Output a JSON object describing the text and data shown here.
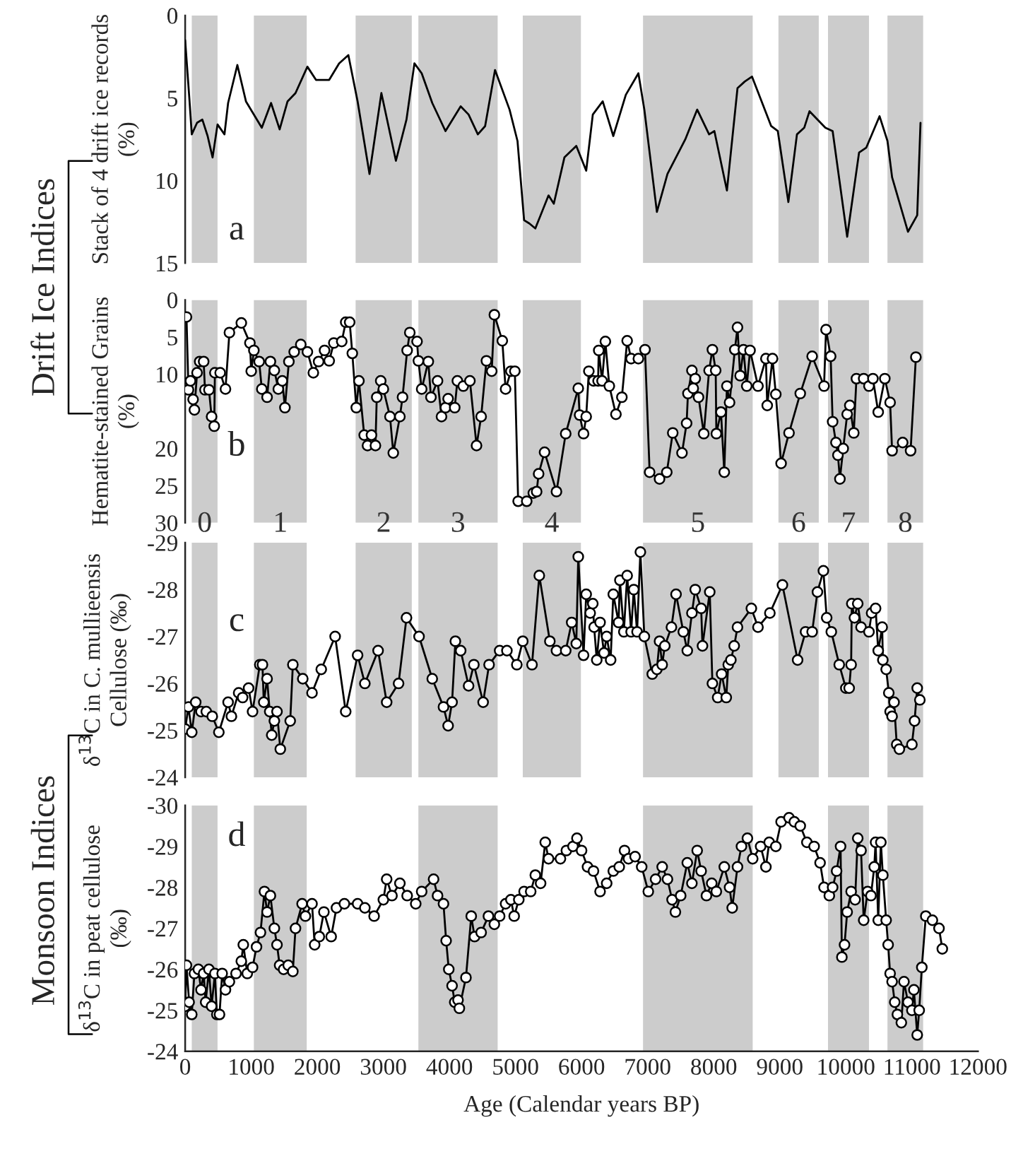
{
  "chart_data": [
    {
      "type": "line",
      "ylabel": "Stack of 4 drift ice records\n(%)",
      "annotations": [
        "a",
        "Drift Ice Indices"
      ],
      "xlim": [
        0,
        12000
      ],
      "ylim": [
        15,
        0
      ],
      "yticks": [
        0,
        5,
        10,
        15
      ],
      "tick_labels": "y",
      "marker": "none",
      "line_style": "solid",
      "grid": false,
      "legend": false,
      "bands": [
        {
          "axis": "x",
          "from": 100,
          "to": 490,
          "color": "#cccccc"
        },
        {
          "axis": "x",
          "from": 1040,
          "to": 1840,
          "color": "#cccccc"
        },
        {
          "axis": "x",
          "from": 2580,
          "to": 3430,
          "color": "#cccccc"
        },
        {
          "axis": "x",
          "from": 3530,
          "to": 4730,
          "color": "#cccccc"
        },
        {
          "axis": "x",
          "from": 5110,
          "to": 5990,
          "color": "#cccccc"
        },
        {
          "axis": "x",
          "from": 6930,
          "to": 8590,
          "color": "#cccccc"
        },
        {
          "axis": "x",
          "from": 8980,
          "to": 9590,
          "color": "#cccccc"
        },
        {
          "axis": "x",
          "from": 9730,
          "to": 10350,
          "color": "#cccccc"
        },
        {
          "axis": "x",
          "from": 10630,
          "to": 11170,
          "color": "#cccccc"
        }
      ],
      "series": [
        {
          "color": "#000000",
          "x": [
            0,
            63,
            100,
            180,
            260,
            340,
            415,
            490,
            595,
            650,
            790,
            920,
            1160,
            1300,
            1430,
            1550,
            1670,
            1850,
            1980,
            2180,
            2330,
            2470,
            2610,
            2790,
            2970,
            3190,
            3350,
            3470,
            3580,
            3740,
            3940,
            4170,
            4290,
            4430,
            4540,
            4690,
            4910,
            5030,
            5130,
            5210,
            5300,
            5500,
            5580,
            5740,
            5920,
            6070,
            6170,
            6320,
            6480,
            6670,
            6860,
            6950,
            7140,
            7300,
            7570,
            7750,
            7930,
            8010,
            8200,
            8360,
            8470,
            8580,
            8870,
            8970,
            9130,
            9260,
            9370,
            9450,
            9690,
            9800,
            10020,
            10200,
            10310,
            10510,
            10630,
            10700,
            10940,
            11080,
            11130
          ],
          "values": [
            1.5,
            5.0,
            7.2,
            6.5,
            6.3,
            7.3,
            8.6,
            6.6,
            7.2,
            5.3,
            3.0,
            5.2,
            6.8,
            5.3,
            6.9,
            5.2,
            4.7,
            3.1,
            3.9,
            3.9,
            2.9,
            2.4,
            5.2,
            9.6,
            4.7,
            8.8,
            6.3,
            2.9,
            3.5,
            5.3,
            7.0,
            5.5,
            6.0,
            7.2,
            6.7,
            3.3,
            5.7,
            7.6,
            12.4,
            12.6,
            12.9,
            10.9,
            11.4,
            8.6,
            7.9,
            9.4,
            6.0,
            5.2,
            7.3,
            4.8,
            3.5,
            5.7,
            11.9,
            9.6,
            7.5,
            5.7,
            7.2,
            7.0,
            10.6,
            4.4,
            4.0,
            3.7,
            6.7,
            7.0,
            11.3,
            7.2,
            6.8,
            5.8,
            6.8,
            7.0,
            13.4,
            8.3,
            8.0,
            6.1,
            7.6,
            9.8,
            13.1,
            12.1,
            6.5
          ]
        }
      ]
    },
    {
      "type": "line",
      "ylabel": "Hematite-stained Grains\n(%)",
      "annotations": [
        "b"
      ],
      "xlim": [
        0,
        12000
      ],
      "ylim": [
        30,
        0
      ],
      "yticks": [
        0,
        5,
        10,
        20,
        25,
        30
      ],
      "tick_labels": "y",
      "marker": "circle",
      "line_style": "solid",
      "grid": false,
      "legend": false,
      "bands": [
        {
          "axis": "x",
          "from": 100,
          "to": 490,
          "color": "#cccccc"
        },
        {
          "axis": "x",
          "from": 1040,
          "to": 1840,
          "color": "#cccccc"
        },
        {
          "axis": "x",
          "from": 2580,
          "to": 3430,
          "color": "#cccccc"
        },
        {
          "axis": "x",
          "from": 3530,
          "to": 4730,
          "color": "#cccccc"
        },
        {
          "axis": "x",
          "from": 5110,
          "to": 5990,
          "color": "#cccccc"
        },
        {
          "axis": "x",
          "from": 6930,
          "to": 8590,
          "color": "#cccccc"
        },
        {
          "axis": "x",
          "from": 8980,
          "to": 9590,
          "color": "#cccccc"
        },
        {
          "axis": "x",
          "from": 9730,
          "to": 10350,
          "color": "#cccccc"
        },
        {
          "axis": "x",
          "from": 10630,
          "to": 11170,
          "color": "#cccccc"
        }
      ],
      "series": [
        {
          "color": "#000000",
          "x": [
            20,
            50,
            80,
            120,
            140,
            180,
            220,
            280,
            300,
            360,
            400,
            440,
            450,
            530,
            610,
            670,
            850,
            980,
            1000,
            1040,
            1120,
            1160,
            1240,
            1290,
            1350,
            1410,
            1470,
            1510,
            1570,
            1650,
            1750,
            1850,
            1940,
            2020,
            2110,
            2180,
            2250,
            2370,
            2430,
            2490,
            2530,
            2590,
            2630,
            2710,
            2760,
            2820,
            2880,
            2900,
            2960,
            3000,
            3100,
            3150,
            3250,
            3290,
            3360,
            3400,
            3510,
            3530,
            3580,
            3680,
            3720,
            3820,
            3880,
            3940,
            3980,
            4080,
            4120,
            4210,
            4310,
            4410,
            4480,
            4560,
            4640,
            4680,
            4800,
            4850,
            4930,
            4990,
            5040,
            5170,
            5270,
            5320,
            5350,
            5440,
            5620,
            5760,
            5950,
            5970,
            6030,
            6070,
            6110,
            6180,
            6250,
            6260,
            6310,
            6360,
            6420,
            6520,
            6610,
            6690,
            6750,
            6860,
            6960,
            7030,
            7180,
            7290,
            7380,
            7520,
            7590,
            7610,
            7670,
            7690,
            7720,
            7770,
            7850,
            7930,
            7980,
            8030,
            8040,
            8110,
            8160,
            8200,
            8240,
            8320,
            8360,
            8400,
            8450,
            8500,
            8550,
            8670,
            8790,
            8810,
            8890,
            8940,
            9020,
            9140,
            9310,
            9490,
            9670,
            9700,
            9770,
            9800,
            9850,
            9880,
            9910,
            9960,
            10020,
            10060,
            10120,
            10160,
            10270,
            10350,
            10410,
            10490,
            10590,
            10670,
            10700,
            10860,
            10980,
            11060
          ],
          "values": [
            2.3,
            12.1,
            10.9,
            13.4,
            14.8,
            9.8,
            8.3,
            8.3,
            12.1,
            12.1,
            15.7,
            17.0,
            9.8,
            9.8,
            12.0,
            4.4,
            3.1,
            5.8,
            9.6,
            6.8,
            8.3,
            12.0,
            13.1,
            8.3,
            9.5,
            12.0,
            10.9,
            14.5,
            8.3,
            7.0,
            6.0,
            7.0,
            9.8,
            8.3,
            6.8,
            8.2,
            5.8,
            5.6,
            3.0,
            3.0,
            7.2,
            14.5,
            10.9,
            18.2,
            19.6,
            18.2,
            19.6,
            13.1,
            10.9,
            12.0,
            15.7,
            20.6,
            15.7,
            13.1,
            6.8,
            4.4,
            5.6,
            8.2,
            12.0,
            8.3,
            13.1,
            10.9,
            15.7,
            14.5,
            13.3,
            14.5,
            10.9,
            11.6,
            10.9,
            19.6,
            15.7,
            8.2,
            9.6,
            2.0,
            5.5,
            12.0,
            9.6,
            9.6,
            27.1,
            27.1,
            26.0,
            25.8,
            23.4,
            20.5,
            25.8,
            18.0,
            11.9,
            15.5,
            18.0,
            15.7,
            9.6,
            10.9,
            10.9,
            6.8,
            10.9,
            5.6,
            11.6,
            15.4,
            13.1,
            5.5,
            7.9,
            7.9,
            6.7,
            23.2,
            24.1,
            23.2,
            17.9,
            20.6,
            16.6,
            12.6,
            9.5,
            11.9,
            10.6,
            13.1,
            18.0,
            9.5,
            6.7,
            9.5,
            18.0,
            15.1,
            23.2,
            11.6,
            13.8,
            6.7,
            3.7,
            10.2,
            6.7,
            11.6,
            6.8,
            11.6,
            7.9,
            14.2,
            7.9,
            12.7,
            22.0,
            17.9,
            12.6,
            7.6,
            11.6,
            4.0,
            7.6,
            16.4,
            19.2,
            20.9,
            24.1,
            20.0,
            15.4,
            14.2,
            17.9,
            10.6,
            10.6,
            11.6,
            10.6,
            15.1,
            10.6,
            13.8,
            20.3,
            19.2,
            20.3,
            7.7
          ]
        }
      ]
    },
    {
      "type": "line",
      "ylabel": "δ$^{13}$C in C. mullieensis\nCellulose (‰)",
      "annotations": [
        "c",
        "Monsoon Indices"
      ],
      "xlim": [
        0,
        12000
      ],
      "ylim": [
        -24,
        -29
      ],
      "yticks": [
        -29,
        -28,
        -27,
        -26,
        -25,
        -24
      ],
      "tick_labels": "y",
      "marker": "circle",
      "line_style": "solid",
      "grid": false,
      "legend": false,
      "bands": [
        {
          "axis": "x",
          "from": 100,
          "to": 490,
          "color": "#cccccc",
          "label": "0"
        },
        {
          "axis": "x",
          "from": 1040,
          "to": 1840,
          "color": "#cccccc",
          "label": "1"
        },
        {
          "axis": "x",
          "from": 2580,
          "to": 3430,
          "color": "#cccccc",
          "label": "2"
        },
        {
          "axis": "x",
          "from": 3530,
          "to": 4730,
          "color": "#cccccc",
          "label": "3"
        },
        {
          "axis": "x",
          "from": 5110,
          "to": 5990,
          "color": "#cccccc",
          "label": "4"
        },
        {
          "axis": "x",
          "from": 6930,
          "to": 8590,
          "color": "#cccccc",
          "label": "5"
        },
        {
          "axis": "x",
          "from": 8980,
          "to": 9590,
          "color": "#cccccc",
          "label": "6"
        },
        {
          "axis": "x",
          "from": 9730,
          "to": 10350,
          "color": "#cccccc",
          "label": "7"
        },
        {
          "axis": "x",
          "from": 10630,
          "to": 11170,
          "color": "#cccccc",
          "label": "8"
        }
      ],
      "series": [
        {
          "color": "#000000",
          "x": [
            0,
            50,
            100,
            160,
            240,
            320,
            410,
            510,
            650,
            700,
            810,
            870,
            960,
            1020,
            1130,
            1170,
            1190,
            1240,
            1280,
            1310,
            1350,
            1390,
            1440,
            1590,
            1630,
            1780,
            1920,
            2060,
            2270,
            2430,
            2610,
            2720,
            2920,
            3050,
            3230,
            3350,
            3540,
            3740,
            3910,
            3980,
            4040,
            4090,
            4170,
            4290,
            4370,
            4510,
            4600,
            4760,
            4870,
            5020,
            5110,
            5250,
            5360,
            5520,
            5620,
            5760,
            5850,
            5920,
            5950,
            6030,
            6070,
            6130,
            6170,
            6190,
            6230,
            6280,
            6340,
            6380,
            6440,
            6480,
            6560,
            6580,
            6640,
            6690,
            6750,
            6790,
            6840,
            6890,
            6950,
            7070,
            7140,
            7180,
            7220,
            7260,
            7360,
            7430,
            7540,
            7600,
            7670,
            7720,
            7810,
            7830,
            7940,
            7980,
            8060,
            8120,
            8190,
            8220,
            8260,
            8310,
            8360,
            8570,
            8670,
            8850,
            9040,
            9270,
            9390,
            9490,
            9570,
            9660,
            9710,
            9780,
            9900,
            10000,
            10050,
            10080,
            10090,
            10130,
            10180,
            10230,
            10350,
            10390,
            10450,
            10490,
            10550,
            10560,
            10610,
            10650,
            10670,
            10700,
            10730,
            10770,
            10810,
            11000,
            11040,
            11080,
            11120
          ],
          "values": [
            -25.03,
            -25.5,
            -24.96,
            -25.6,
            -25.4,
            -25.4,
            -25.3,
            -24.96,
            -25.6,
            -25.3,
            -25.8,
            -25.7,
            -25.9,
            -25.4,
            -26.4,
            -26.4,
            -25.6,
            -26.1,
            -25.4,
            -24.9,
            -25.2,
            -25.4,
            -24.6,
            -25.2,
            -26.4,
            -26.1,
            -25.8,
            -26.3,
            -27.0,
            -25.4,
            -26.6,
            -26.0,
            -26.7,
            -25.6,
            -26.0,
            -27.4,
            -27.0,
            -26.1,
            -25.5,
            -25.1,
            -25.6,
            -26.9,
            -26.7,
            -25.95,
            -26.4,
            -25.6,
            -26.4,
            -26.7,
            -26.7,
            -26.4,
            -26.9,
            -26.4,
            -28.3,
            -26.9,
            -26.7,
            -26.7,
            -27.3,
            -26.85,
            -28.7,
            -26.6,
            -27.9,
            -27.5,
            -27.7,
            -27.2,
            -26.5,
            -27.3,
            -26.65,
            -27.0,
            -26.5,
            -27.9,
            -27.3,
            -28.2,
            -27.1,
            -28.3,
            -27.1,
            -28.0,
            -27.1,
            -28.8,
            -27.0,
            -26.2,
            -26.3,
            -26.9,
            -26.4,
            -26.8,
            -27.2,
            -27.9,
            -27.1,
            -26.7,
            -27.5,
            -28.0,
            -27.6,
            -26.8,
            -27.95,
            -26.0,
            -25.7,
            -26.2,
            -25.7,
            -26.4,
            -26.5,
            -26.8,
            -27.2,
            -27.6,
            -27.2,
            -27.5,
            -28.1,
            -26.5,
            -27.1,
            -27.1,
            -27.95,
            -28.4,
            -27.4,
            -27.1,
            -26.4,
            -25.9,
            -25.9,
            -26.4,
            -27.7,
            -27.4,
            -27.7,
            -27.2,
            -27.1,
            -27.5,
            -27.6,
            -26.7,
            -27.2,
            -26.5,
            -26.3,
            -25.8,
            -25.4,
            -25.3,
            -25.6,
            -24.7,
            -24.6,
            -24.7,
            -25.2,
            -25.9,
            -25.65
          ]
        }
      ]
    },
    {
      "type": "line",
      "ylabel": "δ$^{13}$C in peat cellulose\n(‰)",
      "xlabel": "Age (Calendar years BP)",
      "annotations": [
        "d"
      ],
      "xlim": [
        0,
        12000
      ],
      "xticks": [
        0,
        1000,
        2000,
        3000,
        4000,
        5000,
        6000,
        7000,
        8000,
        9000,
        10000,
        11000,
        12000
      ],
      "ylim": [
        -24,
        -30
      ],
      "yticks": [
        -30,
        -29,
        -28,
        -27,
        -26,
        -25,
        -24
      ],
      "marker": "circle",
      "line_style": "solid",
      "grid": false,
      "legend": false,
      "bands": [
        {
          "axis": "x",
          "from": 100,
          "to": 490,
          "color": "#cccccc"
        },
        {
          "axis": "x",
          "from": 1040,
          "to": 1840,
          "color": "#cccccc"
        },
        {
          "axis": "x",
          "from": 3530,
          "to": 4730,
          "color": "#cccccc"
        },
        {
          "axis": "x",
          "from": 6930,
          "to": 8590,
          "color": "#cccccc"
        },
        {
          "axis": "x",
          "from": 9730,
          "to": 10350,
          "color": "#cccccc"
        },
        {
          "axis": "x",
          "from": 10630,
          "to": 11170,
          "color": "#cccccc"
        }
      ],
      "series": [
        {
          "color": "#000000",
          "x": [
            0,
            20,
            60,
            100,
            140,
            200,
            240,
            280,
            310,
            360,
            400,
            450,
            480,
            520,
            560,
            610,
            670,
            770,
            850,
            880,
            940,
            1020,
            1080,
            1140,
            1200,
            1240,
            1290,
            1350,
            1390,
            1430,
            1490,
            1560,
            1630,
            1670,
            1770,
            1820,
            1920,
            1960,
            2030,
            2100,
            2210,
            2290,
            2410,
            2610,
            2720,
            2860,
            3000,
            3050,
            3130,
            3250,
            3360,
            3490,
            3580,
            3760,
            3820,
            3910,
            3950,
            3990,
            4040,
            4080,
            4130,
            4150,
            4250,
            4330,
            4380,
            4480,
            4590,
            4680,
            4760,
            4850,
            4930,
            4980,
            5050,
            5130,
            5230,
            5300,
            5380,
            5450,
            5500,
            5680,
            5770,
            5870,
            5930,
            6000,
            6090,
            6180,
            6280,
            6380,
            6480,
            6570,
            6650,
            6710,
            6810,
            6910,
            7010,
            7120,
            7220,
            7300,
            7370,
            7420,
            7500,
            7600,
            7670,
            7750,
            7810,
            7890,
            7970,
            8040,
            8160,
            8240,
            8280,
            8360,
            8420,
            8510,
            8590,
            8710,
            8790,
            8840,
            8940,
            9020,
            9140,
            9220,
            9310,
            9410,
            9520,
            9610,
            9670,
            9750,
            9800,
            9860,
            9920,
            9940,
            9980,
            10020,
            10080,
            10140,
            10180,
            10230,
            10270,
            10330,
            10380,
            10430,
            10450,
            10490,
            10530,
            10560,
            10610,
            10640,
            10670,
            10700,
            10740,
            10780,
            10840,
            10880,
            10940,
            11000,
            11030,
            11080,
            11110,
            11150,
            11210,
            11310,
            11410,
            11460
          ],
          "values": [
            -25.1,
            -26.1,
            -25.2,
            -24.9,
            -25.9,
            -26.0,
            -25.5,
            -25.9,
            -25.2,
            -26.0,
            -25.1,
            -25.9,
            -24.9,
            -24.9,
            -25.9,
            -25.5,
            -25.7,
            -25.9,
            -26.2,
            -26.6,
            -25.9,
            -26.05,
            -26.55,
            -26.9,
            -27.9,
            -27.4,
            -27.8,
            -27.0,
            -26.6,
            -26.1,
            -26.0,
            -26.1,
            -25.95,
            -27.0,
            -27.6,
            -27.3,
            -27.6,
            -26.6,
            -26.8,
            -27.4,
            -26.8,
            -27.5,
            -27.6,
            -27.6,
            -27.5,
            -27.3,
            -27.7,
            -28.2,
            -27.8,
            -28.1,
            -27.8,
            -27.6,
            -27.9,
            -28.2,
            -27.8,
            -27.6,
            -26.7,
            -26.0,
            -25.6,
            -25.2,
            -25.25,
            -25.05,
            -25.8,
            -27.3,
            -26.8,
            -26.9,
            -27.3,
            -27.1,
            -27.3,
            -27.6,
            -27.7,
            -27.3,
            -27.7,
            -27.9,
            -27.9,
            -28.3,
            -28.1,
            -29.1,
            -28.7,
            -28.7,
            -28.9,
            -29.0,
            -29.2,
            -28.9,
            -28.5,
            -28.4,
            -27.9,
            -28.1,
            -28.4,
            -28.5,
            -28.9,
            -28.7,
            -28.75,
            -28.5,
            -27.9,
            -28.2,
            -28.5,
            -28.2,
            -27.7,
            -27.4,
            -27.8,
            -28.6,
            -28.1,
            -28.9,
            -28.4,
            -27.8,
            -28.1,
            -27.9,
            -28.5,
            -28.0,
            -27.5,
            -28.5,
            -29.0,
            -29.2,
            -28.7,
            -29.0,
            -28.5,
            -29.1,
            -29.0,
            -29.6,
            -29.7,
            -29.6,
            -29.5,
            -29.1,
            -29.0,
            -28.6,
            -28.0,
            -27.8,
            -28.0,
            -28.4,
            -29.0,
            -26.3,
            -26.6,
            -27.4,
            -27.9,
            -27.7,
            -29.2,
            -28.9,
            -27.2,
            -27.9,
            -27.8,
            -28.5,
            -29.1,
            -27.2,
            -29.1,
            -28.3,
            -27.2,
            -26.6,
            -25.9,
            -25.7,
            -25.2,
            -24.9,
            -24.7,
            -25.7,
            -25.2,
            -25.0,
            -25.5,
            -24.4,
            -25.0,
            -26.05,
            -27.3,
            -27.2,
            -27.0,
            -26.5
          ]
        }
      ]
    }
  ]
}
